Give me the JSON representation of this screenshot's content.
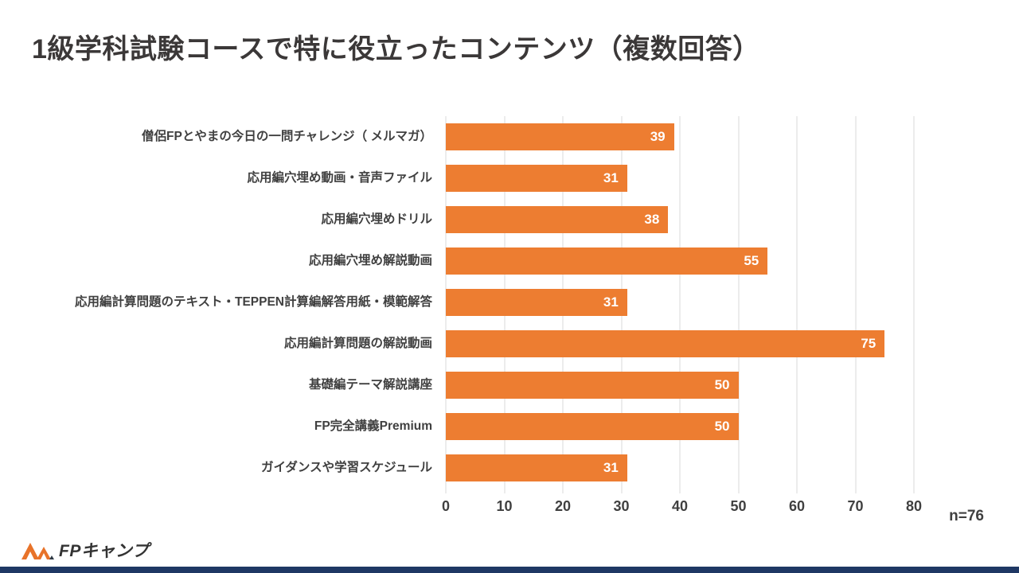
{
  "title": "1級学科試験コースで特に役立ったコンテンツ（複数回答）",
  "chart_data": {
    "type": "bar",
    "orientation": "horizontal",
    "title": "1級学科試験コースで特に役立ったコンテンツ（複数回答）",
    "categories": [
      "僧侶FPとやまの今日の一問チャレンジ（ メルマガ）",
      "応用編穴埋め動画・音声ファイル",
      "応用編穴埋めドリル",
      "応用編穴埋め解説動画",
      "応用編計算問題のテキスト・TEPPEN計算編解答用紙・模範解答",
      "応用編計算問題の解説動画",
      "基礎編テーマ解説講座",
      "FP完全講義Premium",
      "ガイダンスや学習スケジュール"
    ],
    "values": [
      39,
      31,
      38,
      55,
      31,
      75,
      50,
      50,
      31
    ],
    "xlabel": "",
    "ylabel": "",
    "xlim": [
      0,
      80
    ],
    "x_ticks": [
      0,
      10,
      20,
      30,
      40,
      50,
      60,
      70,
      80
    ],
    "grid": true,
    "legend": "none",
    "bar_color": "#ED7D31",
    "value_label_color": "#FFFFFF",
    "sample_size": "n=76"
  },
  "footnote": "n=76",
  "logo": {
    "text": "FPキャンプ"
  },
  "colors": {
    "accent_orange": "#ED7D31",
    "footer_navy": "#1F3864",
    "text_dark": "#404040",
    "gridline": "#D9D9D9"
  }
}
